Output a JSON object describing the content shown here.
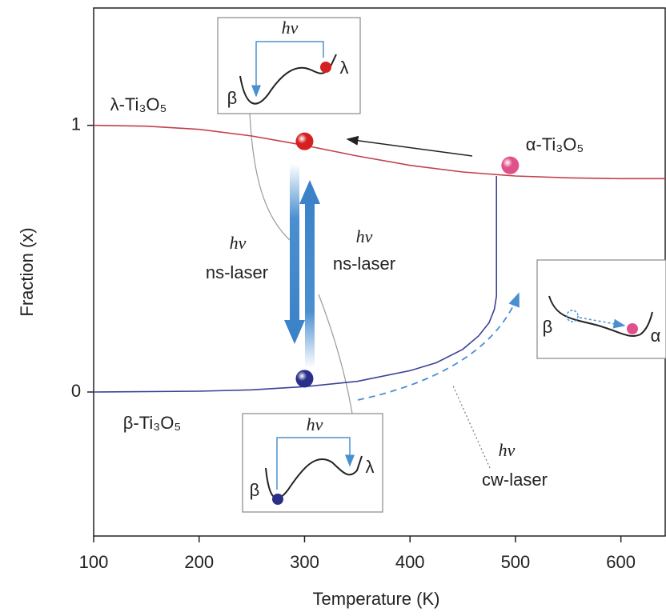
{
  "chart_data": {
    "type": "line",
    "x_label": "Temperature (K)",
    "y_label": "Fraction (x)",
    "xlim": [
      100,
      642
    ],
    "ylim": [
      -0.54,
      1.44
    ],
    "xticks": [
      100,
      200,
      300,
      400,
      500,
      600
    ],
    "yticks": [
      0,
      1
    ],
    "series": [
      {
        "name": "λ-Ti₃O₅",
        "color": "#c2404a",
        "x": [
          100,
          150,
          200,
          250,
          300,
          350,
          400,
          450,
          500,
          550,
          600,
          642
        ],
        "values": [
          1.0,
          0.997,
          0.985,
          0.96,
          0.925,
          0.885,
          0.85,
          0.825,
          0.81,
          0.803,
          0.8,
          0.8
        ]
      },
      {
        "name": "β-Ti₃O₅",
        "color": "#3c4296",
        "x": [
          100,
          200,
          250,
          300,
          350,
          400,
          425,
          450,
          465,
          475,
          480,
          482,
          482
        ],
        "values": [
          0,
          0.003,
          0.008,
          0.02,
          0.04,
          0.08,
          0.11,
          0.16,
          0.21,
          0.26,
          0.31,
          0.36,
          0.81
        ]
      }
    ],
    "markers": {
      "x": [
        300,
        300,
        495
      ],
      "values": [
        0.94,
        0.05,
        0.85
      ],
      "colors": [
        "#d42020",
        "#2a2f8a",
        "#e0508a"
      ]
    },
    "phase_labels": [
      "λ-Ti₃O₅",
      "α-Ti₃O₅",
      "β-Ti₃O₅"
    ],
    "annotations": {
      "ns_down": [
        "hν",
        "ns-laser"
      ],
      "ns_up": [
        "hν",
        "ns-laser"
      ],
      "cw": [
        "hν",
        "cw-laser"
      ]
    },
    "insets": {
      "top": {
        "photon": "hν",
        "left": "β",
        "right": "λ"
      },
      "bottom": {
        "photon": "hν",
        "left": "β",
        "right": "λ"
      },
      "right": {
        "left": "β",
        "right": "α"
      }
    }
  }
}
